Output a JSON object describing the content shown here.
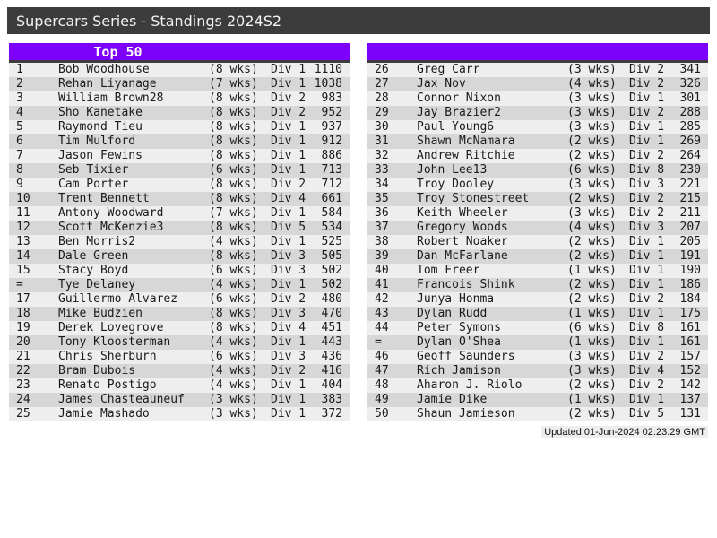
{
  "header": {
    "title": "Supercars Series - Standings 2024S2"
  },
  "colors": {
    "accent_purple": "#7d00fa",
    "title_bar_bg": "#3c3c3c",
    "row_odd": "#eeeeee",
    "row_even": "#d7d7d7",
    "footer_bg": "#ededed"
  },
  "panels": {
    "left": {
      "header": "Top 50",
      "rows": [
        {
          "rank": "1",
          "name": "Bob Woodhouse",
          "weeks": "(8 wks)",
          "division": "Div 1",
          "points": "1110"
        },
        {
          "rank": "2",
          "name": "Rehan Liyanage",
          "weeks": "(7 wks)",
          "division": "Div 1",
          "points": "1038"
        },
        {
          "rank": "3",
          "name": "William Brown28",
          "weeks": "(8 wks)",
          "division": "Div 2",
          "points": "983"
        },
        {
          "rank": "4",
          "name": "Sho Kanetake",
          "weeks": "(8 wks)",
          "division": "Div 2",
          "points": "952"
        },
        {
          "rank": "5",
          "name": "Raymond Tieu",
          "weeks": "(8 wks)",
          "division": "Div 1",
          "points": "937"
        },
        {
          "rank": "6",
          "name": "Tim Mulford",
          "weeks": "(8 wks)",
          "division": "Div 1",
          "points": "912"
        },
        {
          "rank": "7",
          "name": "Jason Fewins",
          "weeks": "(8 wks)",
          "division": "Div 1",
          "points": "886"
        },
        {
          "rank": "8",
          "name": "Seb Tixier",
          "weeks": "(6 wks)",
          "division": "Div 1",
          "points": "713"
        },
        {
          "rank": "9",
          "name": "Cam Porter",
          "weeks": "(8 wks)",
          "division": "Div 2",
          "points": "712"
        },
        {
          "rank": "10",
          "name": "Trent Bennett",
          "weeks": "(8 wks)",
          "division": "Div 4",
          "points": "661"
        },
        {
          "rank": "11",
          "name": "Antony Woodward",
          "weeks": "(7 wks)",
          "division": "Div 1",
          "points": "584"
        },
        {
          "rank": "12",
          "name": "Scott McKenzie3",
          "weeks": "(8 wks)",
          "division": "Div 5",
          "points": "534"
        },
        {
          "rank": "13",
          "name": "Ben Morris2",
          "weeks": "(4 wks)",
          "division": "Div 1",
          "points": "525"
        },
        {
          "rank": "14",
          "name": "Dale Green",
          "weeks": "(8 wks)",
          "division": "Div 3",
          "points": "505"
        },
        {
          "rank": "15",
          "name": "Stacy Boyd",
          "weeks": "(6 wks)",
          "division": "Div 3",
          "points": "502"
        },
        {
          "rank": "=",
          "name": "Tye Delaney",
          "weeks": "(4 wks)",
          "division": "Div 1",
          "points": "502"
        },
        {
          "rank": "17",
          "name": "Guillermo Alvarez",
          "weeks": "(6 wks)",
          "division": "Div 2",
          "points": "480"
        },
        {
          "rank": "18",
          "name": "Mike Budzien",
          "weeks": "(8 wks)",
          "division": "Div 3",
          "points": "470"
        },
        {
          "rank": "19",
          "name": "Derek Lovegrove",
          "weeks": "(8 wks)",
          "division": "Div 4",
          "points": "451"
        },
        {
          "rank": "20",
          "name": "Tony Kloosterman",
          "weeks": "(4 wks)",
          "division": "Div 1",
          "points": "443"
        },
        {
          "rank": "21",
          "name": "Chris Sherburn",
          "weeks": "(6 wks)",
          "division": "Div 3",
          "points": "436"
        },
        {
          "rank": "22",
          "name": "Bram Dubois",
          "weeks": "(4 wks)",
          "division": "Div 2",
          "points": "416"
        },
        {
          "rank": "23",
          "name": "Renato Postigo",
          "weeks": "(4 wks)",
          "division": "Div 1",
          "points": "404"
        },
        {
          "rank": "24",
          "name": "James Chasteauneuf",
          "weeks": "(3 wks)",
          "division": "Div 1",
          "points": "383"
        },
        {
          "rank": "25",
          "name": "Jamie Mashado",
          "weeks": "(3 wks)",
          "division": "Div 1",
          "points": "372"
        }
      ]
    },
    "right": {
      "header": "",
      "rows": [
        {
          "rank": "26",
          "name": "Greg Carr",
          "weeks": "(3 wks)",
          "division": "Div 2",
          "points": "341"
        },
        {
          "rank": "27",
          "name": "Jax Nov",
          "weeks": "(4 wks)",
          "division": "Div 2",
          "points": "326"
        },
        {
          "rank": "28",
          "name": "Connor Nixon",
          "weeks": "(3 wks)",
          "division": "Div 1",
          "points": "301"
        },
        {
          "rank": "29",
          "name": "Jay Brazier2",
          "weeks": "(3 wks)",
          "division": "Div 2",
          "points": "288"
        },
        {
          "rank": "30",
          "name": "Paul Young6",
          "weeks": "(3 wks)",
          "division": "Div 1",
          "points": "285"
        },
        {
          "rank": "31",
          "name": "Shawn McNamara",
          "weeks": "(2 wks)",
          "division": "Div 1",
          "points": "269"
        },
        {
          "rank": "32",
          "name": "Andrew Ritchie",
          "weeks": "(2 wks)",
          "division": "Div 2",
          "points": "264"
        },
        {
          "rank": "33",
          "name": "John Lee13",
          "weeks": "(6 wks)",
          "division": "Div 8",
          "points": "230"
        },
        {
          "rank": "34",
          "name": "Troy Dooley",
          "weeks": "(3 wks)",
          "division": "Div 3",
          "points": "221"
        },
        {
          "rank": "35",
          "name": "Troy Stonestreet",
          "weeks": "(2 wks)",
          "division": "Div 2",
          "points": "215"
        },
        {
          "rank": "36",
          "name": "Keith Wheeler",
          "weeks": "(3 wks)",
          "division": "Div 2",
          "points": "211"
        },
        {
          "rank": "37",
          "name": "Gregory Woods",
          "weeks": "(4 wks)",
          "division": "Div 3",
          "points": "207"
        },
        {
          "rank": "38",
          "name": "Robert Noaker",
          "weeks": "(2 wks)",
          "division": "Div 1",
          "points": "205"
        },
        {
          "rank": "39",
          "name": "Dan McFarlane",
          "weeks": "(2 wks)",
          "division": "Div 1",
          "points": "191"
        },
        {
          "rank": "40",
          "name": "Tom Freer",
          "weeks": "(1 wks)",
          "division": "Div 1",
          "points": "190"
        },
        {
          "rank": "41",
          "name": "Francois Shink",
          "weeks": "(2 wks)",
          "division": "Div 1",
          "points": "186"
        },
        {
          "rank": "42",
          "name": "Junya Honma",
          "weeks": "(2 wks)",
          "division": "Div 2",
          "points": "184"
        },
        {
          "rank": "43",
          "name": "Dylan Rudd",
          "weeks": "(1 wks)",
          "division": "Div 1",
          "points": "175"
        },
        {
          "rank": "44",
          "name": "Peter Symons",
          "weeks": "(6 wks)",
          "division": "Div 8",
          "points": "161"
        },
        {
          "rank": "=",
          "name": "Dylan O'Shea",
          "weeks": "(1 wks)",
          "division": "Div 1",
          "points": "161"
        },
        {
          "rank": "46",
          "name": "Geoff Saunders",
          "weeks": "(3 wks)",
          "division": "Div 2",
          "points": "157"
        },
        {
          "rank": "47",
          "name": "Rich Jamison",
          "weeks": "(3 wks)",
          "division": "Div 4",
          "points": "152"
        },
        {
          "rank": "48",
          "name": "Aharon J. Riolo",
          "weeks": "(2 wks)",
          "division": "Div 2",
          "points": "142"
        },
        {
          "rank": "49",
          "name": "Jamie Dike",
          "weeks": "(1 wks)",
          "division": "Div 1",
          "points": "137"
        },
        {
          "rank": "50",
          "name": "Shaun Jamieson",
          "weeks": "(2 wks)",
          "division": "Div 5",
          "points": "131"
        }
      ]
    }
  },
  "footer": {
    "updated": "Updated 01-Jun-2024 02:23:29 GMT"
  }
}
